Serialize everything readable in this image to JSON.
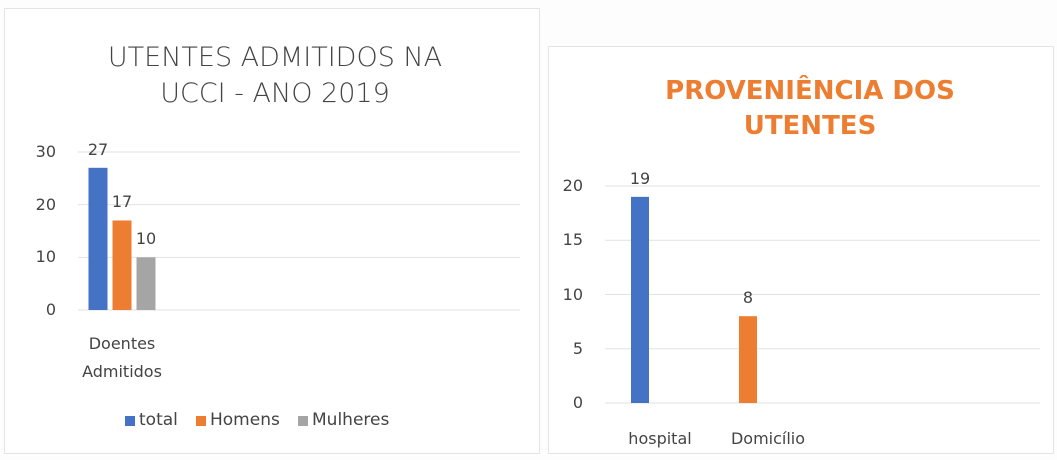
{
  "chart_data": [
    {
      "type": "bar",
      "title": "UTENTES ADMITIDOS NA UCCI - ANO 2019",
      "categories": [
        "Doentes Admitidos"
      ],
      "series": [
        {
          "name": "total",
          "color": "#4472c4",
          "values": [
            27
          ]
        },
        {
          "name": "Homens",
          "color": "#ed7d31",
          "values": [
            17
          ]
        },
        {
          "name": "Mulheres",
          "color": "#a5a5a5",
          "values": [
            10
          ]
        }
      ],
      "ylim": [
        0,
        30
      ],
      "yticks": [
        0,
        10,
        20,
        30
      ],
      "grid": true,
      "legend": "bottom",
      "data_labels": true
    },
    {
      "type": "bar",
      "title": "PROVENIÊNCIA DOS UTENTES",
      "title_color": "#ed7d31",
      "categories": [
        "hospital",
        "Domicílio"
      ],
      "values": [
        19,
        8
      ],
      "colors": [
        "#4472c4",
        "#ed7d31"
      ],
      "ylim": [
        0,
        20
      ],
      "yticks": [
        0,
        5,
        10,
        15,
        20
      ],
      "grid": true,
      "data_labels": true
    }
  ]
}
